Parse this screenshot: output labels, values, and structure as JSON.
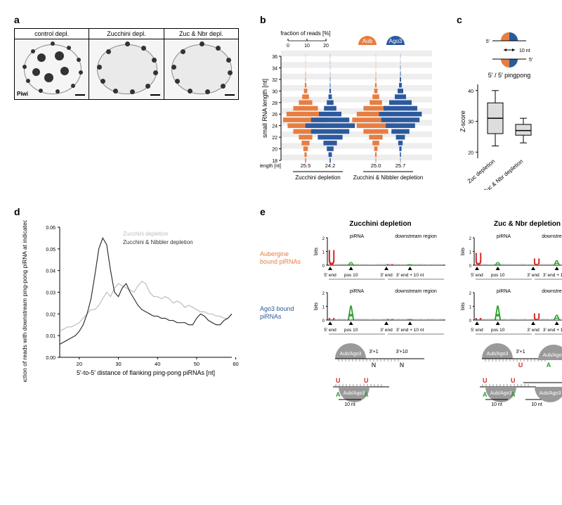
{
  "colors": {
    "aub": "#e67e42",
    "ago3": "#2c5a9e",
    "grey_light": "#bdbdbd",
    "grey_dark": "#333333",
    "logo_U": "#d62a2a",
    "logo_A": "#2ca02c",
    "logo_G": "#f0a500",
    "logo_C": "#4060c0",
    "background": "#ffffff"
  },
  "panel_a": {
    "label": "a",
    "conditions": [
      "control depl.",
      "Zucchini depl.",
      "Zuc & Nbr depl."
    ],
    "antibody_label": "Piwi"
  },
  "panel_b": {
    "label": "b",
    "legend_scale_title": "fraction of reads [%]",
    "legend_scale_ticks": [
      0,
      10,
      20
    ],
    "aub_label": "Aub",
    "ago3_label": "Ago3",
    "y_label": "small RNA length [nt]",
    "y_ticks": [
      18,
      20,
      22,
      24,
      26,
      28,
      30,
      32,
      34,
      36
    ],
    "lengths": [
      18,
      19,
      20,
      21,
      22,
      23,
      24,
      25,
      26,
      27,
      28,
      29,
      30,
      31,
      32,
      33,
      34,
      35,
      36
    ],
    "groups": [
      {
        "label": "Zucchini depletion",
        "mean_aub": "25.5",
        "mean_ago3": "24.2",
        "aub": [
          0.5,
          1,
          2,
          3.5,
          6,
          11,
          16,
          20,
          17,
          11,
          6,
          3,
          1.5,
          0.7,
          0.3,
          0.2,
          0.1,
          0.1,
          0.1
        ],
        "ago3": [
          0.5,
          1.5,
          3,
          6,
          11,
          17,
          22,
          17,
          10,
          5.5,
          3,
          1.5,
          0.7,
          0.3,
          0.2,
          0.1,
          0.1,
          0.1,
          0.1
        ]
      },
      {
        "label": "Zucchini & Nibbler depletion",
        "mean_aub": "25.0",
        "mean_ago3": "25.7",
        "aub": [
          0.3,
          0.7,
          1.5,
          3,
          6,
          11,
          17,
          21,
          17,
          11,
          5.5,
          3,
          1.5,
          0.7,
          0.3,
          0.2,
          0.1,
          0.1,
          0.1
        ],
        "ago3": [
          0.2,
          0.5,
          1,
          2,
          4,
          8,
          13,
          17,
          19,
          15,
          10,
          5,
          2.5,
          1.2,
          0.6,
          0.3,
          0.2,
          0.1,
          0.1
        ]
      }
    ],
    "mean_length_label": "mean length [nt]"
  },
  "panel_c": {
    "label": "c",
    "title": "5′ / 5′ pingpong",
    "distance_label": "10 nt",
    "y_label": "Z-score",
    "y_ticks": [
      20,
      30,
      40
    ],
    "conditions": [
      "Zuc depletion",
      "Zuc & Nbr depletion"
    ],
    "boxes": [
      {
        "min": 22,
        "q1": 26,
        "median": 31,
        "q3": 36,
        "max": 40
      },
      {
        "min": 23,
        "q1": 25.5,
        "median": 27,
        "q3": 29,
        "max": 31
      }
    ]
  },
  "panel_d": {
    "label": "d",
    "y_label": "fraction of reads with downstream ping-pong piRNA at indicated position",
    "x_label": "5′-to-5′ distance of flanking ping-pong piRNAs [nt]",
    "x_ticks": [
      20,
      30,
      40,
      50,
      60
    ],
    "series": [
      {
        "name": "Zucchini depletion",
        "color": "#bdbdbd",
        "y": [
          0.012,
          0.013,
          0.014,
          0.014,
          0.015,
          0.016,
          0.018,
          0.02,
          0.022,
          0.022,
          0.024,
          0.027,
          0.03,
          0.028,
          0.032,
          0.034,
          0.033,
          0.032,
          0.031,
          0.03,
          0.033,
          0.035,
          0.034,
          0.03,
          0.028,
          0.028,
          0.027,
          0.028,
          0.027,
          0.025,
          0.026,
          0.025,
          0.023,
          0.024,
          0.023,
          0.022,
          0.021,
          0.021,
          0.02,
          0.02,
          0.019,
          0.019,
          0.018,
          0.018,
          0.02
        ]
      },
      {
        "name": "Zucchini & Nibbler depletion",
        "color": "#333333",
        "y": [
          0.006,
          0.007,
          0.008,
          0.009,
          0.01,
          0.012,
          0.015,
          0.02,
          0.027,
          0.038,
          0.05,
          0.055,
          0.052,
          0.04,
          0.03,
          0.028,
          0.032,
          0.034,
          0.03,
          0.027,
          0.024,
          0.022,
          0.021,
          0.02,
          0.019,
          0.019,
          0.018,
          0.018,
          0.017,
          0.017,
          0.016,
          0.016,
          0.016,
          0.015,
          0.015,
          0.018,
          0.02,
          0.019,
          0.017,
          0.016,
          0.015,
          0.015,
          0.017,
          0.018,
          0.02
        ]
      }
    ],
    "x_start": 15,
    "x_end": 59,
    "y_max": 0.06
  },
  "panel_e": {
    "label": "e",
    "col_headers": [
      "Zucchini depletion",
      "Zuc & Nbr depletion"
    ],
    "row_labels": [
      {
        "text": "Aubergine bound piRNAs",
        "color": "#e67e42"
      },
      {
        "text": "Ago3 bound piRNAs",
        "color": "#2c5a9e"
      }
    ],
    "y_label": "bits",
    "y_ticks": [
      0,
      1,
      2
    ],
    "x_region_labels": [
      "piRNA",
      "downstream region"
    ],
    "x_tick_labels": [
      "5′ end",
      "pos 10",
      "3′ end",
      "3′ end + 10 nt"
    ],
    "logos": {
      "aub_zuc": {
        "end5_U": 1.6,
        "pos10_A": 0.35,
        "dn1_U": 0.1,
        "dn10_A": 0.1
      },
      "aub_zucnbr": {
        "end5_U": 1.3,
        "pos10_A": 0.35,
        "dn1_U": 0.7,
        "dn10_A": 0.5
      },
      "ago3_zuc": {
        "end5_U": 0.25,
        "pos10_A": 1.5,
        "dn1_U": 0.1,
        "dn10_A": 0.1
      },
      "ago3_zucnbr": {
        "end5_U": 0.25,
        "pos10_A": 1.5,
        "dn1_U": 0.7,
        "dn10_A": 0.55
      }
    },
    "cartoon_labels": {
      "protein": "Aub/Ago3",
      "pos_3p1": "3′+1",
      "pos_3p10": "3′+10",
      "N": "N",
      "U": "U",
      "A": "A",
      "dist10": "10 nt",
      "five_prime": "5′"
    }
  }
}
